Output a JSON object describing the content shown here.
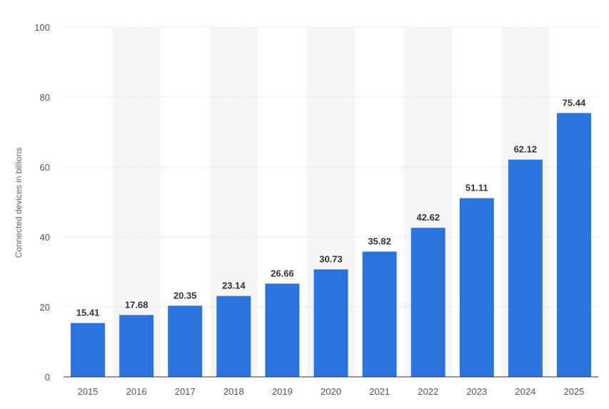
{
  "chart_data": {
    "type": "bar",
    "title": "",
    "xlabel": "",
    "ylabel": "Connected devices in billions",
    "categories": [
      "2015",
      "2016",
      "2017",
      "2018",
      "2019",
      "2020",
      "2021",
      "2022",
      "2023",
      "2024",
      "2025"
    ],
    "values": [
      15.41,
      17.68,
      20.35,
      23.14,
      26.66,
      30.73,
      35.82,
      42.62,
      51.11,
      62.12,
      75.44
    ],
    "value_labels": [
      "15.41",
      "17.68",
      "20.35",
      "23.14",
      "26.66",
      "30.73",
      "35.82",
      "42.62",
      "51.11",
      "62.12",
      "75.44"
    ],
    "ylim": [
      0,
      100
    ],
    "yticks": [
      0,
      20,
      40,
      60,
      80,
      100
    ],
    "grid": true,
    "legend": "none"
  },
  "colors": {
    "bar": "#2a74db",
    "grid": "#c9c9c9",
    "band": "#f5f5f5",
    "axis": "#333333"
  }
}
